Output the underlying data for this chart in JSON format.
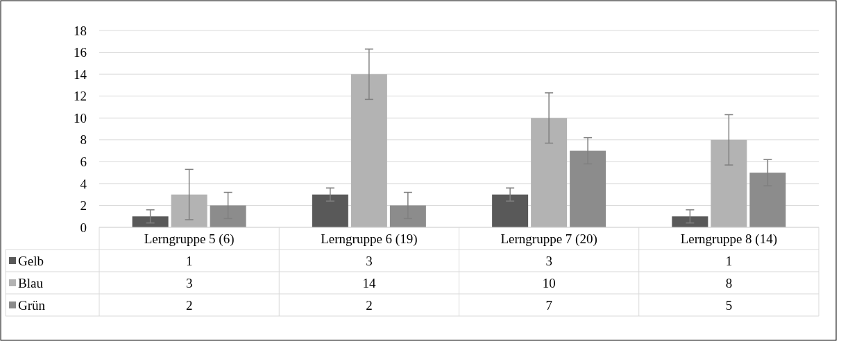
{
  "chart_data": {
    "type": "bar",
    "categories": [
      "Lerngruppe 5 (6)",
      "Lerngruppe 6 (19)",
      "Lerngruppe 7 (20)",
      "Lerngruppe 8 (14)"
    ],
    "series": [
      {
        "name": "Gelb",
        "color": "#595959",
        "values": [
          1,
          3,
          3,
          1
        ],
        "errors": [
          0.6,
          0.6,
          0.6,
          0.6
        ]
      },
      {
        "name": "Blau",
        "color": "#b3b3b3",
        "values": [
          3,
          14,
          10,
          8
        ],
        "errors": [
          2.3,
          2.3,
          2.3,
          2.3
        ]
      },
      {
        "name": "Grün",
        "color": "#8c8c8c",
        "values": [
          2,
          2,
          7,
          5
        ],
        "errors": [
          1.2,
          1.2,
          1.2,
          1.2
        ]
      }
    ],
    "ylim": [
      0,
      18
    ],
    "yticks": [
      0,
      2,
      4,
      6,
      8,
      10,
      12,
      14,
      16,
      18
    ],
    "grid": "y",
    "legend": "bottom left",
    "data_labels": true
  }
}
